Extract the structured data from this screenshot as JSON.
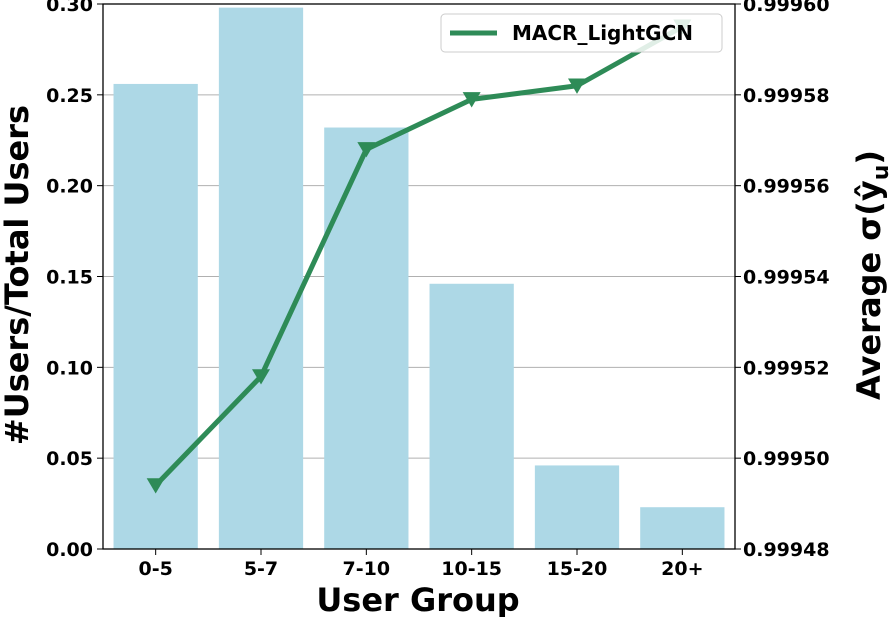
{
  "chart_data": {
    "type": "bar",
    "categories": [
      "0-5",
      "5-7",
      "7-10",
      "10-15",
      "15-20",
      "20+"
    ],
    "xlabel": "User Group",
    "ylabel": "#Users/Total Users",
    "ylabel_right": "Average σ(ŷ",
    "ylabel_right_sub": "u",
    "ylabel_right_close": ")",
    "ylim": [
      0,
      0.3
    ],
    "y_ticks": [
      "0.00",
      "0.05",
      "0.10",
      "0.15",
      "0.20",
      "0.25",
      "0.30"
    ],
    "y2lim": [
      0.99948,
      0.9996
    ],
    "y2_ticks": [
      "0.99948",
      "0.99950",
      "0.99952",
      "0.99954",
      "0.99956",
      "0.99958",
      "0.99960"
    ],
    "grid": true,
    "legend_position": "top-right",
    "series": [
      {
        "kind": "bar",
        "axis": "left",
        "color": "#add8e6",
        "values": [
          0.256,
          0.298,
          0.232,
          0.146,
          0.046,
          0.023
        ]
      },
      {
        "kind": "line",
        "axis": "right",
        "name": "MACR_LightGCN",
        "color": "#2e8b57",
        "marker": "triangle-down",
        "values": [
          0.999494,
          0.999518,
          0.999568,
          0.999579,
          0.999582,
          0.999595
        ]
      }
    ]
  }
}
